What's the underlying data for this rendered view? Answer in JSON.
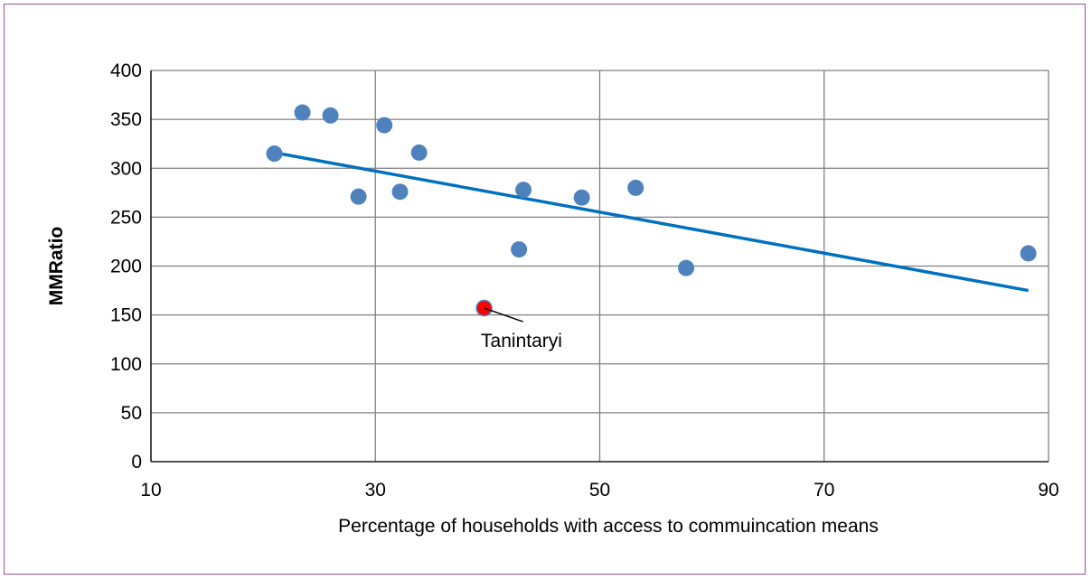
{
  "chart_data": {
    "type": "scatter",
    "xlabel": "Percentage of households with access to commuincation means",
    "ylabel": "MMRatio",
    "xlim": [
      10,
      90
    ],
    "ylim": [
      0,
      400
    ],
    "xticks": [
      10,
      30,
      50,
      70,
      90
    ],
    "yticks": [
      0,
      50,
      100,
      150,
      200,
      250,
      300,
      350,
      400
    ],
    "grid": true,
    "colors": {
      "points": "#4f81bd",
      "highlight": "#ff0000",
      "trendline": "#0070c0",
      "grid": "#808080"
    },
    "points": [
      {
        "x": 21.0,
        "y": 315
      },
      {
        "x": 23.5,
        "y": 357
      },
      {
        "x": 26.0,
        "y": 354
      },
      {
        "x": 28.5,
        "y": 271
      },
      {
        "x": 30.8,
        "y": 344
      },
      {
        "x": 32.2,
        "y": 276
      },
      {
        "x": 33.9,
        "y": 316
      },
      {
        "x": 42.8,
        "y": 217
      },
      {
        "x": 43.2,
        "y": 278
      },
      {
        "x": 48.4,
        "y": 270
      },
      {
        "x": 53.2,
        "y": 280
      },
      {
        "x": 57.7,
        "y": 198
      },
      {
        "x": 88.2,
        "y": 213
      }
    ],
    "highlight": {
      "x": 39.7,
      "y": 157,
      "label": "Tanintaryi"
    },
    "trendline": {
      "x": [
        21.0,
        88.2
      ],
      "y": [
        316,
        175
      ]
    }
  }
}
